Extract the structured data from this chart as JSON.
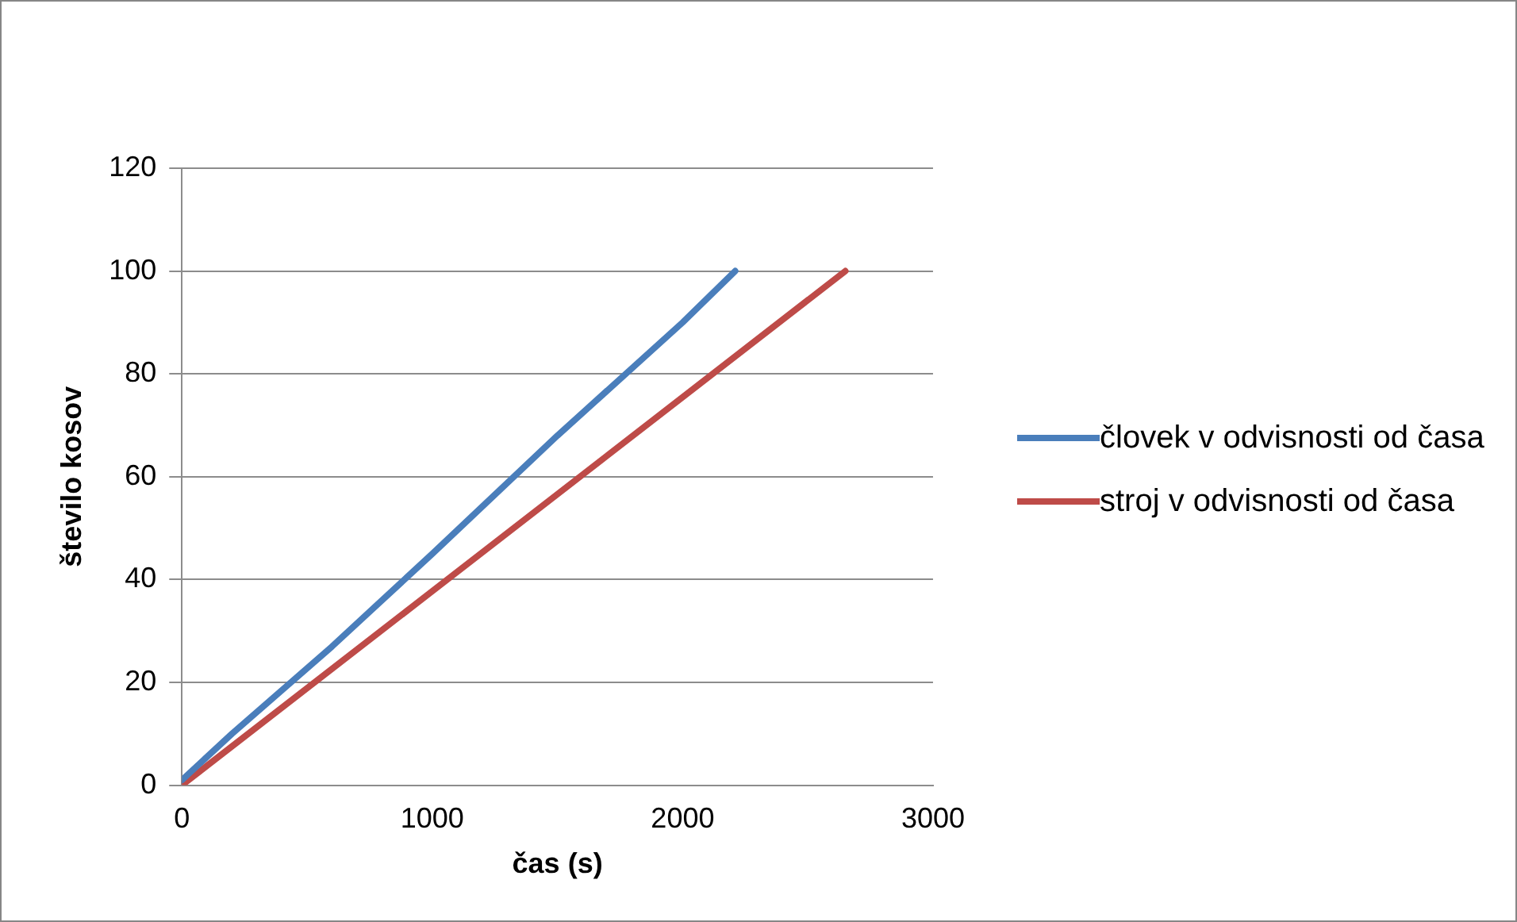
{
  "chart_data": {
    "type": "line",
    "xlabel": "čas (s)",
    "ylabel": "število kosov",
    "xlim": [
      0,
      3000
    ],
    "xticks": [
      0,
      1000,
      2000,
      3000
    ],
    "ylim": [
      0,
      120
    ],
    "yticks": [
      0,
      20,
      40,
      60,
      80,
      100,
      120
    ],
    "grid": "y",
    "legend": "right",
    "marker": "none",
    "line_style": "solid",
    "series": [
      {
        "name": "človek v odvisnosti od časa",
        "color": "#4a7ebb",
        "x": [
          0,
          200,
          600,
          1000,
          1500,
          2000,
          2210
        ],
        "values": [
          1,
          10,
          27,
          45,
          68,
          90,
          100
        ]
      },
      {
        "name": "stroj v odvisnosti od časa",
        "color": "#be4b48",
        "x": [
          0,
          2650
        ],
        "values": [
          0,
          100
        ]
      }
    ]
  }
}
